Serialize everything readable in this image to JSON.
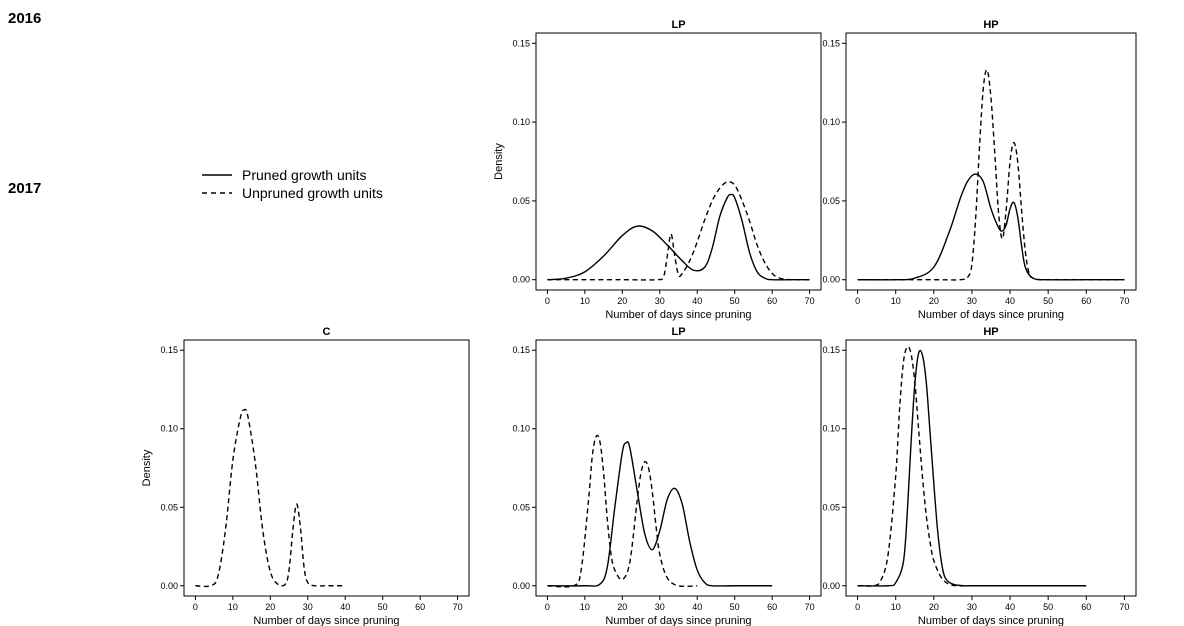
{
  "years": [
    "2016",
    "2017"
  ],
  "legend": {
    "pruned": "Pruned growth units",
    "unpruned": "Unpruned growth units"
  },
  "chart_data": [
    {
      "type": "line",
      "year": "2016",
      "title": "LP",
      "xlabel": "Number of days since pruning",
      "ylabel": "Density",
      "xlim": [
        0,
        70
      ],
      "ylim": [
        0,
        0.15
      ],
      "xticks": [
        0,
        10,
        20,
        30,
        40,
        50,
        60,
        70
      ],
      "yticks": [
        "0.00",
        "0.05",
        "0.10",
        "0.15"
      ],
      "series": [
        {
          "name": "Pruned growth units",
          "style": "solid",
          "x": [
            0,
            5,
            10,
            15,
            20,
            24,
            28,
            32,
            36,
            39,
            42,
            44,
            46,
            48,
            49,
            50,
            52,
            54,
            56,
            58,
            60,
            65,
            70
          ],
          "y": [
            0,
            0.001,
            0.005,
            0.015,
            0.028,
            0.034,
            0.031,
            0.022,
            0.012,
            0.006,
            0.008,
            0.02,
            0.04,
            0.052,
            0.054,
            0.052,
            0.037,
            0.017,
            0.005,
            0.001,
            0,
            0,
            0
          ]
        },
        {
          "name": "Unpruned growth units",
          "style": "dashed",
          "x": [
            0,
            10,
            20,
            29,
            31,
            32,
            33,
            34,
            35,
            36,
            38,
            40,
            42,
            44,
            46,
            48,
            50,
            52,
            54,
            56,
            58,
            60,
            62,
            65,
            70
          ],
          "y": [
            0,
            0,
            0,
            0,
            0.002,
            0.015,
            0.029,
            0.015,
            0.003,
            0.004,
            0.012,
            0.024,
            0.038,
            0.05,
            0.058,
            0.062,
            0.06,
            0.05,
            0.037,
            0.022,
            0.011,
            0.004,
            0.001,
            0,
            0
          ]
        }
      ]
    },
    {
      "type": "line",
      "year": "2016",
      "title": "HP",
      "xlabel": "Number of days since pruning",
      "ylabel": "",
      "xlim": [
        0,
        70
      ],
      "ylim": [
        0,
        0.15
      ],
      "xticks": [
        0,
        10,
        20,
        30,
        40,
        50,
        60,
        70
      ],
      "yticks": [
        "0.00",
        "0.05",
        "0.10",
        "0.15"
      ],
      "series": [
        {
          "name": "Pruned growth units",
          "style": "solid",
          "x": [
            0,
            10,
            15,
            20,
            24,
            27,
            29,
            31,
            33,
            35,
            37,
            38,
            39,
            40,
            41,
            42,
            43,
            44,
            46,
            50,
            60,
            70
          ],
          "y": [
            0,
            0,
            0.001,
            0.008,
            0.03,
            0.052,
            0.063,
            0.067,
            0.062,
            0.045,
            0.033,
            0.031,
            0.035,
            0.045,
            0.049,
            0.04,
            0.022,
            0.008,
            0.001,
            0,
            0,
            0
          ]
        },
        {
          "name": "Unpruned growth units",
          "style": "dashed",
          "x": [
            0,
            20,
            27,
            29,
            30,
            31,
            32,
            33,
            34,
            35,
            36,
            37,
            38,
            39,
            40,
            41,
            42,
            43,
            44,
            45,
            46,
            48,
            50,
            60,
            70
          ],
          "y": [
            0,
            0,
            0,
            0.002,
            0.01,
            0.04,
            0.085,
            0.122,
            0.133,
            0.115,
            0.08,
            0.042,
            0.026,
            0.045,
            0.075,
            0.087,
            0.075,
            0.045,
            0.018,
            0.004,
            0.001,
            0,
            0,
            0,
            0
          ]
        }
      ]
    },
    {
      "type": "line",
      "year": "2017",
      "title": "C",
      "xlabel": "Number of days since pruning",
      "ylabel": "Density",
      "xlim": [
        0,
        70
      ],
      "ylim": [
        0,
        0.15
      ],
      "xticks": [
        0,
        10,
        20,
        30,
        40,
        50,
        60,
        70
      ],
      "yticks": [
        "0.00",
        "0.05",
        "0.10",
        "0.15"
      ],
      "series": [
        {
          "name": "Unpruned growth units",
          "style": "dashed",
          "x": [
            0,
            4,
            6,
            8,
            10,
            12,
            13,
            14,
            16,
            18,
            20,
            22,
            24,
            25,
            26,
            27,
            28,
            29,
            30,
            32,
            35,
            40
          ],
          "y": [
            0,
            0,
            0.006,
            0.035,
            0.08,
            0.107,
            0.112,
            0.108,
            0.078,
            0.035,
            0.009,
            0.001,
            0.001,
            0.01,
            0.035,
            0.052,
            0.038,
            0.012,
            0.002,
            0,
            0,
            0
          ]
        }
      ]
    },
    {
      "type": "line",
      "year": "2017",
      "title": "LP",
      "xlabel": "Number of days since pruning",
      "ylabel": "",
      "xlim": [
        0,
        70
      ],
      "ylim": [
        0,
        0.15
      ],
      "xticks": [
        0,
        10,
        20,
        30,
        40,
        50,
        60,
        70
      ],
      "yticks": [
        "0.00",
        "0.05",
        "0.10",
        "0.15"
      ],
      "series": [
        {
          "name": "Pruned growth units",
          "style": "solid",
          "x": [
            0,
            10,
            14,
            16,
            18,
            20,
            21,
            22,
            24,
            26,
            28,
            30,
            32,
            34,
            36,
            38,
            40,
            42,
            44,
            50,
            60
          ],
          "y": [
            0,
            0,
            0.001,
            0.012,
            0.05,
            0.085,
            0.091,
            0.088,
            0.06,
            0.033,
            0.023,
            0.035,
            0.055,
            0.062,
            0.052,
            0.028,
            0.01,
            0.002,
            0,
            0,
            0
          ]
        },
        {
          "name": "Unpruned growth units",
          "style": "dashed",
          "x": [
            0,
            7,
            9,
            11,
            12,
            13,
            14,
            15,
            16,
            17,
            18,
            20,
            22,
            24,
            25,
            26,
            27,
            28,
            29,
            30,
            32,
            35,
            40
          ],
          "y": [
            0,
            0,
            0.01,
            0.055,
            0.083,
            0.095,
            0.092,
            0.072,
            0.042,
            0.02,
            0.01,
            0.004,
            0.015,
            0.055,
            0.072,
            0.079,
            0.075,
            0.06,
            0.038,
            0.02,
            0.005,
            0,
            0
          ]
        }
      ]
    },
    {
      "type": "line",
      "year": "2017",
      "title": "HP",
      "xlabel": "Number of days since pruning",
      "ylabel": "",
      "xlim": [
        0,
        70
      ],
      "ylim": [
        0,
        0.15
      ],
      "xticks": [
        0,
        10,
        20,
        30,
        40,
        50,
        60,
        70
      ],
      "yticks": [
        "0.00",
        "0.05",
        "0.10",
        "0.15"
      ],
      "series": [
        {
          "name": "Pruned growth units",
          "style": "solid",
          "x": [
            0,
            8,
            10,
            12,
            13,
            14,
            15,
            16,
            17,
            18,
            19,
            20,
            21,
            22,
            23,
            25,
            28,
            30,
            40,
            60
          ],
          "y": [
            0,
            0,
            0.002,
            0.015,
            0.045,
            0.09,
            0.128,
            0.148,
            0.147,
            0.13,
            0.098,
            0.065,
            0.035,
            0.015,
            0.005,
            0.001,
            0,
            0,
            0,
            0
          ]
        },
        {
          "name": "Unpruned growth units",
          "style": "dashed",
          "x": [
            0,
            4,
            6,
            8,
            10,
            11,
            12,
            13,
            14,
            15,
            16,
            17,
            18,
            19,
            20,
            22,
            24,
            26,
            30,
            40
          ],
          "y": [
            0,
            0,
            0.003,
            0.02,
            0.07,
            0.112,
            0.142,
            0.152,
            0.148,
            0.13,
            0.1,
            0.07,
            0.045,
            0.028,
            0.016,
            0.005,
            0.001,
            0,
            0,
            0
          ]
        }
      ]
    }
  ]
}
